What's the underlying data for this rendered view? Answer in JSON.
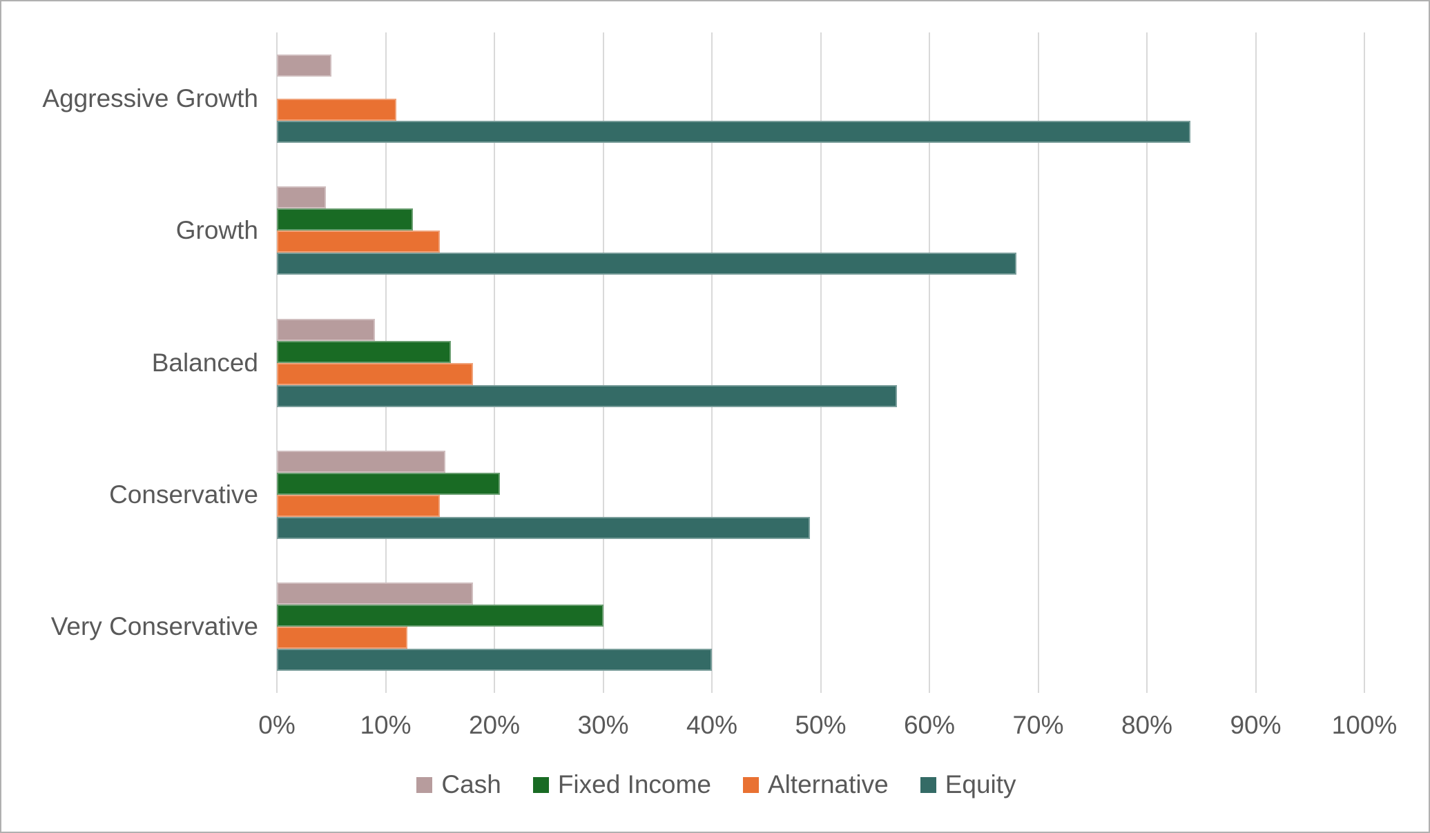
{
  "chart_data": {
    "type": "bar",
    "orientation": "horizontal",
    "title": "",
    "categories": [
      "Aggressive Growth",
      "Growth",
      "Balanced",
      "Conservative",
      "Very Conservative"
    ],
    "series": [
      {
        "name": "Cash",
        "color": "#b79c9d",
        "values": [
          5,
          4.5,
          9,
          15.5,
          18
        ]
      },
      {
        "name": "Fixed Income",
        "color": "#196b24",
        "values": [
          0,
          12.5,
          16,
          20.5,
          30
        ]
      },
      {
        "name": "Alternative",
        "color": "#e97132",
        "values": [
          11,
          15,
          18,
          15,
          12
        ]
      },
      {
        "name": "Equity",
        "color": "#346b66",
        "values": [
          84,
          68,
          57,
          49,
          40
        ]
      }
    ],
    "x_axis": {
      "min": 0,
      "max": 100,
      "step": 10,
      "ticks": [
        "0%",
        "10%",
        "20%",
        "30%",
        "40%",
        "50%",
        "60%",
        "70%",
        "80%",
        "90%",
        "100%"
      ]
    },
    "legend": [
      "Cash",
      "Fixed Income",
      "Alternative",
      "Equity"
    ],
    "legend_position": "bottom",
    "grid": true
  },
  "styles": {
    "grid_color": "#d9d9d9",
    "text_color": "#595959",
    "background": "#ffffff",
    "frame_border": "#b0b0b0"
  }
}
